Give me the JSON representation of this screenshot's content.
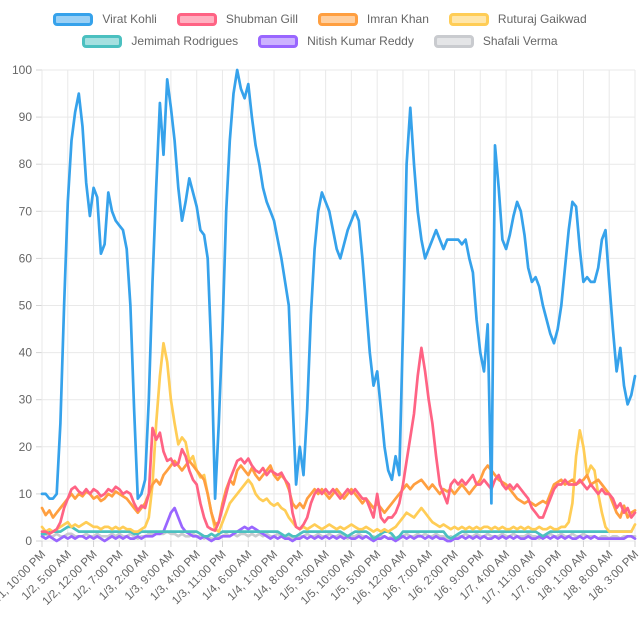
{
  "chart": {
    "background": "#ffffff",
    "axis_text_color": "#666666",
    "grid_color": "#e9e9e9",
    "tick_mark_color": "#d4d4d4"
  },
  "chart_data": {
    "type": "line",
    "title": "",
    "xlabel": "",
    "ylabel": "",
    "grid": true,
    "legend_position": "top",
    "x_axis": {
      "interval": "hourly",
      "points_per_tick": 7,
      "tick_labels": [
        "1/1, 10:00 PM",
        "1/2, 5:00 AM",
        "1/2, 12:00 PM",
        "1/2, 7:00 PM",
        "1/3, 2:00 AM",
        "1/3, 9:00 AM",
        "1/3, 4:00 PM",
        "1/3, 11:00 PM",
        "1/4, 6:00 AM",
        "1/4, 1:00 PM",
        "1/4, 8:00 PM",
        "1/5, 3:00 AM",
        "1/5, 10:00 AM",
        "1/5, 5:00 PM",
        "1/6, 12:00 AM",
        "1/6, 7:00 AM",
        "1/6, 2:00 PM",
        "1/6, 9:00 PM",
        "1/7, 4:00 AM",
        "1/7, 11:00 AM",
        "1/7, 6:00 PM",
        "1/8, 1:00 AM",
        "1/8, 8:00 AM",
        "1/8, 3:00 PM"
      ]
    },
    "y_axis": {
      "min": 0,
      "max": 100,
      "tick_step": 10,
      "tick_labels": [
        "0",
        "10",
        "20",
        "30",
        "40",
        "50",
        "60",
        "70",
        "80",
        "90",
        "100"
      ]
    },
    "series": [
      {
        "name": "Virat Kohli",
        "color": "#36A2EB",
        "fill_color": "#9AD0F5",
        "values": [
          10,
          10,
          9,
          9,
          10,
          25,
          50,
          72,
          85,
          91,
          95,
          88,
          76,
          69,
          75,
          73,
          61,
          63,
          74,
          70,
          68,
          67,
          66,
          62,
          50,
          28,
          9,
          10,
          13,
          30,
          55,
          75,
          93,
          82,
          98,
          92,
          85,
          75,
          68,
          72,
          77,
          74,
          71,
          66,
          65,
          60,
          40,
          9,
          25,
          45,
          70,
          85,
          95,
          100,
          96,
          94,
          97,
          90,
          84,
          80,
          75,
          72,
          70,
          68,
          64,
          60,
          55,
          50,
          30,
          12,
          20,
          14,
          28,
          48,
          62,
          70,
          74,
          72,
          70,
          66,
          62,
          60,
          63,
          66,
          68,
          70,
          68,
          60,
          50,
          40,
          33,
          36,
          28,
          20,
          15,
          13,
          18,
          14,
          45,
          80,
          92,
          80,
          70,
          64,
          60,
          62,
          64,
          66,
          64,
          62,
          64,
          64,
          64,
          64,
          63,
          64,
          60,
          57,
          47,
          40,
          36,
          46,
          8,
          84,
          75,
          64,
          62,
          65,
          69,
          72,
          70,
          65,
          58,
          55,
          56,
          54,
          50,
          47,
          44,
          42,
          45,
          50,
          58,
          66,
          72,
          71,
          62,
          55,
          56,
          55,
          55,
          58,
          64,
          66,
          55,
          45,
          36,
          41,
          33,
          29,
          31,
          35
        ]
      },
      {
        "name": "Shubman Gill",
        "color": "#FF6384",
        "fill_color": "#FFB1C1",
        "values": [
          2,
          2,
          1.5,
          2,
          2.5,
          4,
          7,
          9,
          11,
          11.5,
          10.5,
          10,
          11,
          10,
          11,
          10.5,
          9.5,
          10,
          11,
          10.5,
          11.5,
          11,
          10,
          10.5,
          10,
          8,
          6.5,
          7.5,
          7,
          10,
          24,
          21.5,
          23,
          19,
          17,
          17.5,
          16,
          16.5,
          19.5,
          18,
          15,
          13,
          12,
          8,
          5,
          3,
          2.5,
          2.2,
          4,
          7,
          10,
          13,
          15,
          17,
          17.5,
          16.5,
          17.5,
          16,
          15,
          14.5,
          15.5,
          14,
          15,
          14.5,
          14,
          14.5,
          13,
          12,
          6,
          3,
          2.5,
          3.5,
          5,
          8,
          10,
          11,
          10,
          11,
          10,
          11,
          10,
          9,
          10,
          11,
          10,
          11,
          10,
          9,
          9,
          7,
          5,
          10,
          5,
          4,
          5,
          5,
          6,
          8,
          12,
          17,
          22,
          27,
          35,
          41,
          36,
          30,
          25,
          18,
          12,
          10,
          8,
          12,
          13,
          12,
          13,
          12,
          13,
          14,
          12,
          12,
          13,
          12,
          11,
          13,
          14,
          12,
          11,
          12,
          11,
          12,
          11,
          10,
          9,
          7,
          6,
          5,
          5,
          7,
          9,
          11,
          12,
          12,
          13,
          12,
          12,
          12,
          13,
          12,
          11,
          12,
          11,
          10,
          11,
          10,
          10,
          9,
          7,
          8,
          6,
          7,
          5,
          6
        ]
      },
      {
        "name": "Imran Khan",
        "color": "#FF9F40",
        "fill_color": "#FFCF9F",
        "values": [
          7,
          5.5,
          6.5,
          5,
          6,
          7,
          8,
          9,
          10,
          9,
          10,
          9.5,
          10.5,
          10,
          9,
          9.5,
          8.5,
          9,
          10,
          9.5,
          10.5,
          10,
          9.5,
          9,
          8,
          7,
          6,
          7,
          8,
          10,
          12,
          13,
          12,
          14,
          15,
          16,
          17,
          16,
          15,
          16,
          17,
          16,
          15,
          14,
          13,
          10,
          6,
          3.5,
          4,
          8,
          11,
          13,
          12,
          15,
          16,
          15,
          14,
          15.5,
          14,
          13,
          14,
          15,
          16,
          14,
          13,
          14,
          13,
          11,
          8,
          7,
          8,
          7,
          9,
          10,
          11,
          10,
          11,
          10,
          9,
          10,
          11,
          10,
          9,
          10,
          11,
          10,
          9,
          8,
          9,
          8,
          7,
          8,
          7,
          6,
          7,
          8,
          9,
          10,
          11,
          12,
          11,
          12,
          12.5,
          13,
          12,
          11,
          12,
          11,
          10,
          11,
          10.5,
          11,
          10,
          11,
          12,
          11,
          10,
          11,
          12,
          13,
          15,
          16,
          15,
          14,
          13,
          12.5,
          12,
          11,
          10,
          9,
          8.5,
          8,
          8.5,
          8,
          7.5,
          8,
          8.5,
          8,
          10,
          12,
          12.5,
          13,
          12,
          12.5,
          13,
          12,
          12.5,
          13,
          14,
          12,
          12.5,
          13,
          12,
          11,
          10,
          8,
          6,
          5,
          7.5,
          5,
          6,
          6.5
        ]
      },
      {
        "name": "Ruturaj Gaikwad",
        "color": "#FFCD56",
        "fill_color": "#FFE6AA",
        "values": [
          3,
          2,
          2.5,
          2,
          2.5,
          3,
          3.5,
          4,
          3,
          3.5,
          3,
          3.5,
          4,
          3.5,
          3,
          3,
          2.5,
          3,
          3,
          2.5,
          3,
          2.5,
          3,
          2.5,
          2.5,
          2,
          2,
          2.5,
          3,
          5,
          12,
          25,
          35,
          42,
          38,
          30,
          25,
          20.5,
          22,
          21,
          17,
          18,
          15,
          13.5,
          14,
          10,
          6,
          2.5,
          2,
          4,
          6,
          8,
          9,
          10,
          11,
          12,
          13,
          12,
          10,
          9,
          8.5,
          9,
          8,
          7.5,
          8,
          7,
          6.5,
          5,
          4,
          3,
          2.5,
          3,
          2.5,
          3,
          3.5,
          3,
          2.5,
          3,
          3.5,
          3,
          2.5,
          3,
          2.5,
          3,
          3.5,
          3,
          2.5,
          2.5,
          3,
          2.5,
          2,
          2.5,
          2,
          2.5,
          2,
          2.5,
          3,
          4,
          5,
          6,
          5.5,
          5,
          6,
          7,
          6,
          5,
          4,
          3.5,
          3,
          3.5,
          3,
          2.5,
          3,
          2.5,
          3,
          2.5,
          3,
          2.5,
          3,
          2.5,
          3,
          3,
          2.5,
          3,
          2.5,
          3,
          2.5,
          2.5,
          3,
          2.5,
          3,
          2.5,
          3,
          2.5,
          2.5,
          3,
          2.5,
          2.5,
          3,
          2.5,
          2.5,
          3,
          3,
          4,
          8,
          18,
          23.5,
          20,
          14,
          16,
          15,
          10,
          6,
          3,
          2,
          2,
          2,
          2,
          2,
          2,
          2,
          3.5
        ]
      },
      {
        "name": "Jemimah Rodrigues",
        "color": "#4BC0C0",
        "fill_color": "#A5E0E0",
        "values": [
          1.5,
          1.5,
          2,
          2,
          2,
          2,
          2.5,
          3,
          3,
          2.5,
          2,
          2,
          2,
          2,
          2,
          2,
          2,
          2,
          2,
          2,
          2,
          2,
          2,
          2,
          2,
          1.5,
          1.5,
          2,
          2,
          2,
          2,
          2,
          2,
          2,
          2,
          2,
          2,
          2,
          2,
          2,
          2,
          2,
          2,
          1.5,
          1,
          1,
          1.5,
          1,
          1.5,
          2,
          2,
          2,
          2,
          2,
          2,
          2,
          2,
          2,
          2,
          2,
          2,
          2,
          2,
          2,
          2,
          1.5,
          1,
          1.5,
          1,
          1,
          1.5,
          2,
          2,
          2,
          2,
          2,
          2,
          2,
          2,
          2,
          2,
          2,
          1.5,
          1,
          1.5,
          2,
          2,
          2,
          2,
          1.5,
          0.5,
          1,
          1.5,
          2,
          2,
          1.5,
          0.5,
          1,
          2,
          2,
          2,
          2,
          2,
          2,
          2,
          2,
          2,
          2,
          2,
          2,
          1,
          0.5,
          1,
          1.5,
          2,
          2,
          2,
          2,
          2,
          2,
          2,
          2,
          2,
          2,
          2,
          2,
          2,
          2,
          2,
          2,
          2,
          2,
          2,
          2,
          2,
          1.5,
          1,
          1.5,
          2,
          2,
          2,
          2,
          2,
          2,
          2,
          2,
          2,
          2,
          2,
          2,
          2,
          2,
          2,
          2,
          2,
          2,
          2,
          2,
          2,
          2,
          2
        ]
      },
      {
        "name": "Nitish Kumar Reddy",
        "color": "#9966FF",
        "fill_color": "#CCB2FF",
        "values": [
          1,
          0.5,
          1,
          0.5,
          0,
          0.5,
          1,
          0.5,
          1,
          0.5,
          1,
          1,
          0.5,
          1,
          0.5,
          1,
          0.5,
          0,
          0.5,
          1,
          0.5,
          1,
          0.5,
          1,
          0.5,
          0.5,
          1,
          0.5,
          1,
          1,
          1,
          1.5,
          1.5,
          2,
          4,
          6,
          7,
          5,
          3,
          2,
          1.5,
          1,
          1,
          0.5,
          1,
          0.5,
          0,
          0.5,
          0.5,
          1,
          1,
          1,
          1.5,
          2,
          2.5,
          3,
          2.5,
          3,
          2.5,
          2,
          1.5,
          1,
          0.5,
          1,
          0.5,
          1,
          0.5,
          0.5,
          0,
          0.5,
          0.5,
          1,
          0.5,
          1,
          0.5,
          1,
          0.5,
          1,
          0.5,
          1,
          0.5,
          1,
          0.5,
          1,
          0.5,
          0.5,
          1,
          0.5,
          1,
          0.5,
          0,
          0.5,
          0.5,
          1,
          0.5,
          0.5,
          0,
          0.5,
          1,
          0.5,
          1,
          0.5,
          1,
          1,
          0.5,
          1,
          0.5,
          1,
          0.5,
          0.5,
          0,
          0,
          0.5,
          0.5,
          1,
          0.5,
          1,
          0.5,
          1,
          0.5,
          1,
          0.5,
          0.5,
          1,
          0.5,
          1,
          0.5,
          1,
          0.5,
          1,
          0.5,
          0.5,
          1,
          0.5,
          0.5,
          1,
          0.5,
          1,
          0.5,
          1,
          0.5,
          1,
          0.5,
          1,
          0.5,
          0.5,
          1,
          0.5,
          1,
          0.5,
          1,
          0.5,
          0.5,
          0.5,
          0.5,
          0.5,
          0.5,
          0.5,
          0.5,
          1,
          1,
          0.5
        ]
      },
      {
        "name": "Shafali Verma",
        "color": "#C9CBCF",
        "fill_color": "#E4E5E7",
        "values": [
          1,
          1.5,
          1,
          1,
          1.5,
          1,
          1,
          1.5,
          1.5,
          1,
          1,
          1,
          1.5,
          1,
          1,
          1.5,
          1,
          1,
          1,
          1.5,
          1,
          1.5,
          1,
          1,
          1.5,
          1,
          0.5,
          1,
          1,
          1.5,
          1.5,
          2,
          1.5,
          1.5,
          2,
          1.5,
          1.5,
          1,
          1.5,
          1,
          1,
          1.5,
          1,
          1,
          0.5,
          1,
          0.5,
          0.5,
          1,
          1,
          1.5,
          1,
          1.5,
          1,
          1.5,
          1.5,
          1,
          1.5,
          1,
          1.5,
          1,
          1.5,
          1,
          1,
          1.5,
          1,
          0.5,
          1,
          0.5,
          0.5,
          1,
          1,
          1.5,
          1,
          1,
          1.5,
          1,
          1,
          1.5,
          1,
          1,
          1.5,
          1,
          0.5,
          1,
          1,
          1.5,
          1,
          1,
          0.5,
          1,
          0.5,
          1,
          1,
          0.5,
          1,
          0.5,
          1,
          1,
          1.5,
          1,
          1,
          1.5,
          1,
          1.5,
          1,
          1,
          1.5,
          1,
          1,
          0.5,
          1,
          0.5,
          1,
          1,
          1.5,
          1,
          1,
          1.5,
          1,
          1,
          1.5,
          1,
          1,
          1,
          1.5,
          1,
          1,
          1.5,
          1,
          1,
          1,
          1.5,
          1,
          1,
          0.5,
          1,
          1,
          1.5,
          1,
          1,
          1.5,
          1,
          1,
          1.5,
          1,
          1,
          1.5,
          1,
          1,
          1,
          0.5,
          1,
          1,
          0.5,
          1,
          1,
          0.5,
          1,
          1,
          1,
          1
        ]
      }
    ]
  }
}
